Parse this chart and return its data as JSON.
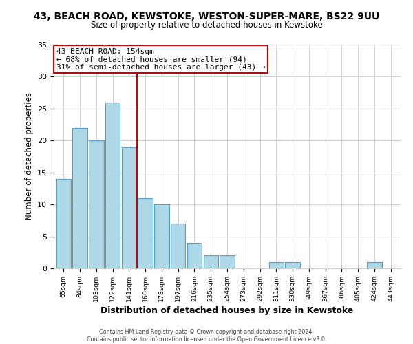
{
  "title_line1": "43, BEACH ROAD, KEWSTOKE, WESTON-SUPER-MARE, BS22 9UU",
  "title_line2": "Size of property relative to detached houses in Kewstoke",
  "xlabel": "Distribution of detached houses by size in Kewstoke",
  "ylabel": "Number of detached properties",
  "bar_labels": [
    "65sqm",
    "84sqm",
    "103sqm",
    "122sqm",
    "141sqm",
    "160sqm",
    "178sqm",
    "197sqm",
    "216sqm",
    "235sqm",
    "254sqm",
    "273sqm",
    "292sqm",
    "311sqm",
    "330sqm",
    "349sqm",
    "367sqm",
    "386sqm",
    "405sqm",
    "424sqm",
    "443sqm"
  ],
  "bar_values": [
    14,
    22,
    20,
    26,
    19,
    11,
    10,
    7,
    4,
    2,
    2,
    0,
    0,
    1,
    1,
    0,
    0,
    0,
    0,
    1,
    0
  ],
  "bar_color": "#add8e6",
  "bar_edge_color": "#5a9ec9",
  "vline_x": 4.5,
  "vline_color": "#cc0000",
  "annotation_title": "43 BEACH ROAD: 154sqm",
  "annotation_line2": "← 68% of detached houses are smaller (94)",
  "annotation_line3": "31% of semi-detached houses are larger (43) →",
  "annotation_box_color": "#ffffff",
  "annotation_box_edge": "#cc0000",
  "ylim": [
    0,
    35
  ],
  "yticks": [
    0,
    5,
    10,
    15,
    20,
    25,
    30,
    35
  ],
  "footer_line1": "Contains HM Land Registry data © Crown copyright and database right 2024.",
  "footer_line2": "Contains public sector information licensed under the Open Government Licence v3.0.",
  "background_color": "#ffffff",
  "grid_color": "#d0d0d0"
}
